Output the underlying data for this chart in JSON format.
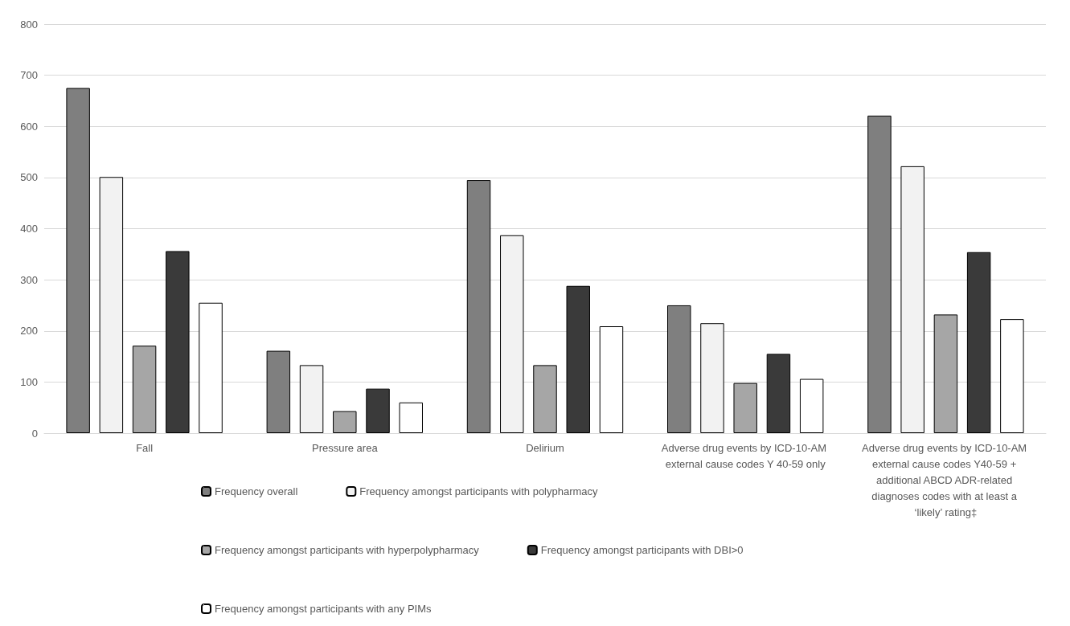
{
  "chart_data": {
    "type": "bar",
    "categories": [
      "Fall",
      "Pressure area",
      "Delirium",
      "Adverse drug events by ICD-10-AM external cause codes Y 40-59 only",
      "Adverse drug events by ICD-10-AM external cause codes Y40-59 + additional ABCD ADR-related diagnoses codes with at least a ‘likely’ rating‡"
    ],
    "series": [
      {
        "name": "Frequency overall",
        "color": "#7f7f7f",
        "values": [
          675,
          161,
          495,
          250,
          621
        ]
      },
      {
        "name": "Frequency amongst participants with polypharmacy",
        "color": "#f2f2f2",
        "values": [
          501,
          133,
          387,
          215,
          522
        ]
      },
      {
        "name": "Frequency amongst participants with hyperpolypharmacy",
        "color": "#a6a6a6",
        "values": [
          171,
          43,
          133,
          98,
          232
        ]
      },
      {
        "name": "Frequency amongst participants with DBI>0",
        "color": "#3a3a3a",
        "values": [
          356,
          87,
          288,
          155,
          354
        ]
      },
      {
        "name": "Frequency amongst participants with any PIMs",
        "color": "#ffffff",
        "values": [
          255,
          60,
          209,
          106,
          223
        ]
      }
    ],
    "ylim": [
      0,
      800
    ],
    "yticks": [
      0,
      100,
      200,
      300,
      400,
      500,
      600,
      700,
      800
    ],
    "grid": "y",
    "legend": "bottom"
  }
}
